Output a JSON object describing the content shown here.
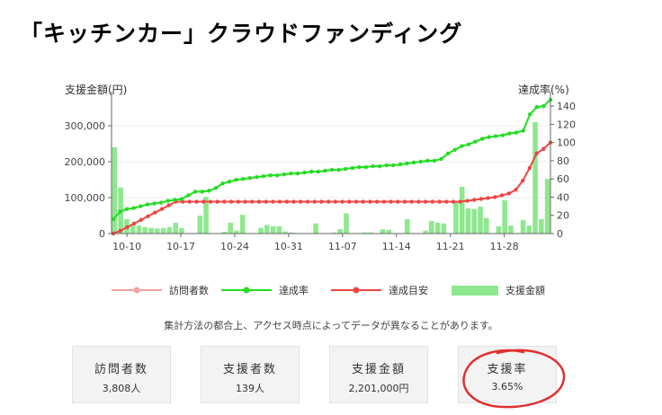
{
  "title": "「キッチンカー」クラウドファンディング",
  "note": "集計方法の都合上、アクセス時点によってデータが異なることがあります。",
  "stats": [
    {
      "label": "訪問者数",
      "value": "3,808人"
    },
    {
      "label": "支援者数",
      "value": "139人"
    },
    {
      "label": "支援金額",
      "value": "2,201,000円"
    },
    {
      "label": "支援率",
      "value": "3.65%"
    }
  ],
  "colors": {
    "bars": "#8ee88e",
    "achievement": "#22dd22",
    "target": "#ee4444",
    "visitors": "#f4a0a0",
    "annotation": "#e03030"
  },
  "chart_data": {
    "type": "bar+line",
    "y_left_label": "支援金額(円)",
    "y_right_label": "達成率(%)",
    "y_left_ticks": [
      "0",
      "100,000",
      "200,000",
      "300,000"
    ],
    "y_left_range": [
      0,
      380000
    ],
    "y_right_ticks": [
      "0",
      "20",
      "40",
      "60",
      "80",
      "100",
      "120",
      "140"
    ],
    "y_right_range": [
      0,
      150
    ],
    "x_ticks": [
      {
        "day": 2,
        "label": "10-10"
      },
      {
        "day": 9,
        "label": "10-17"
      },
      {
        "day": 16,
        "label": "10-24"
      },
      {
        "day": 23,
        "label": "10-31"
      },
      {
        "day": 30,
        "label": "11-07"
      },
      {
        "day": 37,
        "label": "11-14"
      },
      {
        "day": 44,
        "label": "11-21"
      },
      {
        "day": 51,
        "label": "11-28"
      }
    ],
    "x_range": [
      0,
      57
    ],
    "series": [
      {
        "name": "訪問者数",
        "values": []
      },
      {
        "name": "達成率",
        "values": [
          16,
          24,
          27,
          28,
          30,
          32,
          33,
          34,
          36,
          37,
          38,
          42,
          46,
          46,
          47,
          50,
          55,
          57,
          59,
          60,
          61,
          62,
          63,
          64,
          64,
          65,
          66,
          66,
          67,
          68,
          68,
          69,
          70,
          70,
          71,
          72,
          73,
          73,
          74,
          74,
          75,
          75,
          76,
          77,
          78,
          79,
          80,
          80,
          82,
          88,
          92,
          96,
          98,
          101,
          104,
          106,
          107,
          108,
          110,
          111,
          113,
          131,
          139,
          140,
          147
        ]
      },
      {
        "name": "達成目安",
        "values": [
          0,
          3,
          7,
          11,
          15,
          19,
          23,
          27,
          31,
          35,
          35,
          35,
          35,
          35,
          35,
          35,
          35,
          35,
          35,
          35,
          35,
          35,
          35,
          35,
          35,
          35,
          35,
          35,
          35,
          35,
          35,
          35,
          35,
          35,
          35,
          35,
          35,
          35,
          35,
          35,
          35,
          35,
          35,
          35,
          35,
          35,
          35,
          35,
          35,
          35,
          35,
          36,
          37,
          38,
          39,
          40,
          42,
          44,
          48,
          58,
          72,
          88,
          93,
          100
        ]
      },
      {
        "name": "支援金額",
        "values": [
          240000,
          128000,
          40000,
          28000,
          22000,
          18000,
          16000,
          14000,
          15000,
          18000,
          30000,
          15000,
          0,
          0,
          50000,
          102000,
          0,
          0,
          5000,
          30000,
          8000,
          52000,
          0,
          0,
          15000,
          24000,
          20000,
          20000,
          6000,
          3000,
          0,
          0,
          0,
          28000,
          0,
          0,
          3000,
          12000,
          56000,
          0,
          0,
          3000,
          3000,
          0,
          12000,
          10000,
          0,
          0,
          40000,
          0,
          0,
          8000,
          35000,
          30000,
          28000,
          0,
          90000,
          130000,
          70000,
          68000,
          75000,
          43000,
          0,
          20000,
          93000,
          22000,
          0,
          38000,
          22000,
          310000,
          40000,
          152000
        ]
      }
    ]
  }
}
